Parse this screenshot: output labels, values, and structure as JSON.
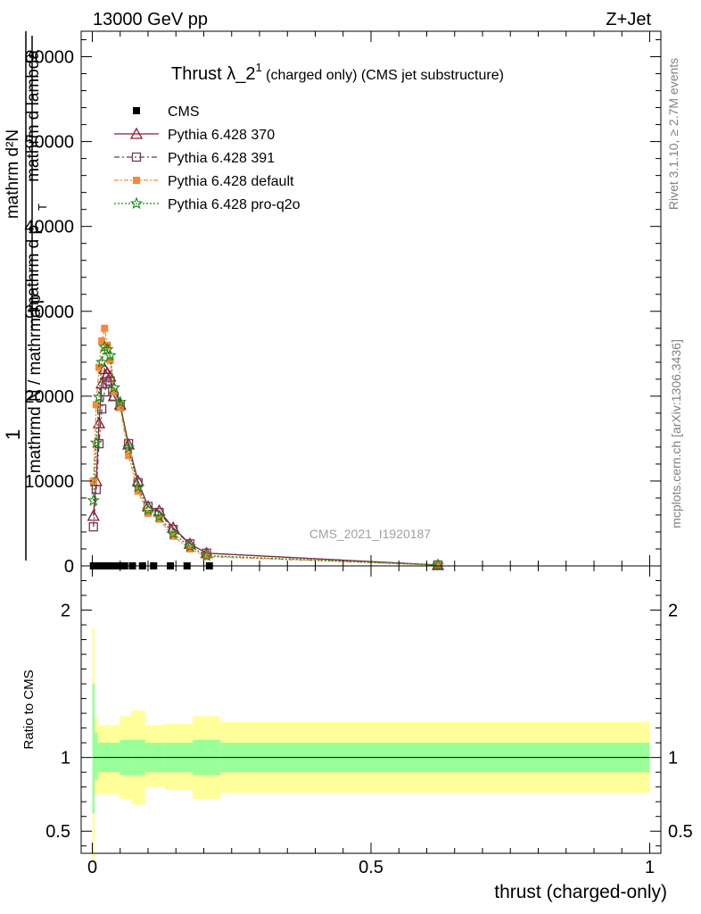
{
  "header": {
    "left": "13000 GeV pp",
    "right": "Z+Jet"
  },
  "title": {
    "main": "Thrust λ_2",
    "sup": "1",
    "rest": " (charged only) (CMS jet substructure)"
  },
  "watermark": "CMS_2021_I1920187",
  "side_text": {
    "rivet": "Rivet 3.1.10, ≥ 2.7M events",
    "mcplots": "mcplots.cern.ch [arXiv:1306.3436]"
  },
  "ylabel_main": {
    "one": "1",
    "den": "mathrmd N / mathrmd p",
    "num": "mathrm d²N",
    "den2": "mathrm d p",
    "sub_t": "T",
    "den2b": " mathrm d lambda"
  },
  "ylabel_ratio": "Ratio to CMS",
  "xlabel": "thrust (charged-only)",
  "colors": {
    "cms": "#000000",
    "p370": "#8b1a2b",
    "p391": "#6b3b55",
    "pdefault": "#f5883a",
    "pq2o": "#1a8a1a",
    "band_inner": "#99ff99",
    "band_outer": "#ffff99"
  },
  "chart_data": [
    {
      "type": "line",
      "panel": "main",
      "x_range": [
        -0.02,
        1.02
      ],
      "ylim": [
        0,
        63000
      ],
      "y_ticks": [
        {
          "v": 0,
          "label": "0"
        },
        {
          "v": 10000,
          "label": "10000"
        },
        {
          "v": 20000,
          "label": "20000"
        },
        {
          "v": 30000,
          "label": "30000"
        },
        {
          "v": 40000,
          "label": "40000"
        },
        {
          "v": 50000,
          "label": "50000"
        },
        {
          "v": 60000,
          "label": "60000"
        }
      ],
      "series": [
        {
          "name": "CMS",
          "style": "data",
          "x": [
            0.002,
            0.007,
            0.012,
            0.017,
            0.022,
            0.027,
            0.032,
            0.039,
            0.047,
            0.058,
            0.072,
            0.09,
            0.11,
            0.14,
            0.17,
            0.21
          ],
          "values": [
            0,
            0,
            0,
            0,
            0,
            0,
            0,
            0,
            0,
            0,
            0,
            0,
            0,
            0,
            0,
            0
          ]
        },
        {
          "name": "Pythia 6.428 370",
          "style": "triangle",
          "x": [
            0.002,
            0.007,
            0.012,
            0.017,
            0.022,
            0.027,
            0.032,
            0.039,
            0.05,
            0.065,
            0.082,
            0.1,
            0.12,
            0.145,
            0.175,
            0.205,
            0.62
          ],
          "values": [
            5900,
            10000,
            16800,
            21500,
            23200,
            22700,
            22300,
            20000,
            19000,
            14300,
            10000,
            7000,
            6500,
            4500,
            2600,
            1500,
            100
          ]
        },
        {
          "name": "Pythia 6.428 391",
          "style": "square-open",
          "x": [
            0.002,
            0.007,
            0.012,
            0.017,
            0.022,
            0.027,
            0.032,
            0.039,
            0.05,
            0.065,
            0.082,
            0.1,
            0.12,
            0.145,
            0.175,
            0.205,
            0.62
          ],
          "values": [
            4600,
            9000,
            14400,
            18500,
            20500,
            21500,
            21800,
            20000,
            18800,
            14400,
            9800,
            7000,
            6300,
            4300,
            2600,
            1500,
            100
          ]
        },
        {
          "name": "Pythia 6.428 default",
          "style": "square-filled",
          "x": [
            0.002,
            0.007,
            0.012,
            0.017,
            0.022,
            0.027,
            0.032,
            0.039,
            0.05,
            0.065,
            0.082,
            0.1,
            0.12,
            0.145,
            0.175,
            0.205,
            0.62
          ],
          "values": [
            10000,
            19000,
            23400,
            26500,
            28000,
            26000,
            24200,
            20500,
            18700,
            13000,
            8800,
            6200,
            5500,
            3500,
            2000,
            1100,
            100
          ]
        },
        {
          "name": "Pythia 6.428 pro-q2o",
          "style": "star",
          "x": [
            0.002,
            0.007,
            0.012,
            0.017,
            0.022,
            0.027,
            0.032,
            0.039,
            0.05,
            0.065,
            0.082,
            0.1,
            0.12,
            0.145,
            0.175,
            0.205,
            0.62
          ],
          "values": [
            7700,
            14500,
            19900,
            24000,
            25800,
            25500,
            24800,
            21000,
            19300,
            13900,
            9300,
            6600,
            5800,
            3800,
            2300,
            1200,
            100
          ]
        }
      ]
    },
    {
      "type": "area",
      "panel": "ratio",
      "x_range": [
        -0.02,
        1.02
      ],
      "ylim": [
        0.35,
        2.3
      ],
      "ylabel": "Ratio to CMS",
      "xlabel": "thrust (charged-only)",
      "y_ticks": [
        {
          "v": 0.5,
          "label": "0.5"
        },
        {
          "v": 1,
          "label": "1"
        },
        {
          "v": 2,
          "label": "2"
        }
      ],
      "x_ticks": [
        {
          "v": 0,
          "label": "0"
        },
        {
          "v": 0.5,
          "label": "0.5"
        },
        {
          "v": 1,
          "label": "1"
        }
      ],
      "bands": [
        {
          "x0": 0.0,
          "x1": 0.004,
          "inner": [
            0.62,
            1.5
          ],
          "outer": [
            0.3,
            1.88
          ]
        },
        {
          "x0": 0.004,
          "x1": 0.01,
          "inner": [
            0.85,
            1.17
          ],
          "outer": [
            0.75,
            1.27
          ]
        },
        {
          "x0": 0.01,
          "x1": 0.05,
          "inner": [
            0.9,
            1.1
          ],
          "outer": [
            0.75,
            1.22
          ]
        },
        {
          "x0": 0.05,
          "x1": 0.07,
          "inner": [
            0.88,
            1.12
          ],
          "outer": [
            0.72,
            1.28
          ]
        },
        {
          "x0": 0.07,
          "x1": 0.095,
          "inner": [
            0.88,
            1.12
          ],
          "outer": [
            0.68,
            1.32
          ]
        },
        {
          "x0": 0.095,
          "x1": 0.13,
          "inner": [
            0.9,
            1.1
          ],
          "outer": [
            0.8,
            1.22
          ]
        },
        {
          "x0": 0.13,
          "x1": 0.18,
          "inner": [
            0.9,
            1.1
          ],
          "outer": [
            0.78,
            1.23
          ]
        },
        {
          "x0": 0.18,
          "x1": 0.23,
          "inner": [
            0.88,
            1.12
          ],
          "outer": [
            0.72,
            1.28
          ]
        },
        {
          "x0": 0.23,
          "x1": 1.0,
          "inner": [
            0.9,
            1.1
          ],
          "outer": [
            0.76,
            1.24
          ]
        }
      ],
      "reference": 1
    }
  ]
}
